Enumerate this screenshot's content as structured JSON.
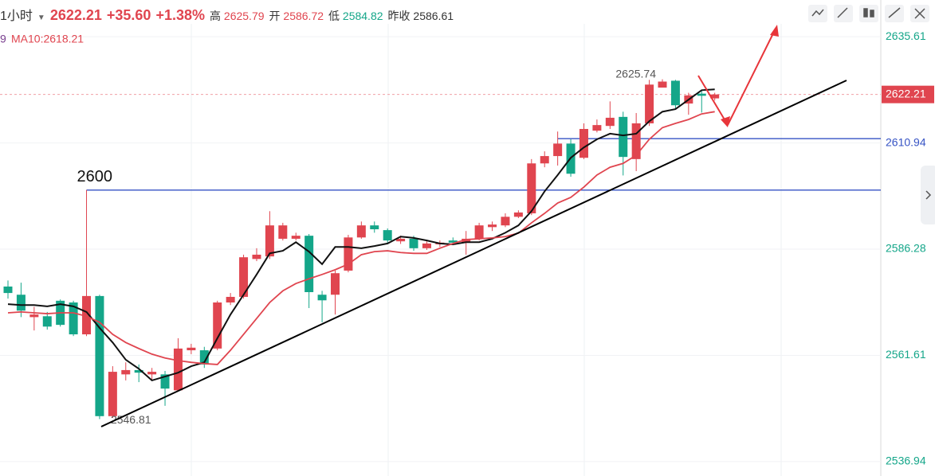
{
  "header": {
    "period": "1小时",
    "price": "2622.21",
    "change": "+35.60",
    "change_pct": "+1.38%",
    "high_label": "高",
    "high": "2625.79",
    "open_label": "开",
    "open": "2586.72",
    "low_label": "低",
    "low": "2584.82",
    "prev_label": "昨收",
    "prev": "2586.61"
  },
  "chart_data": {
    "type": "candlestick",
    "open": [
      2577.6,
      2575.7,
      2570.5,
      2570.7,
      2574.3,
      2573.9,
      2566.5,
      2575.4,
      2547.5,
      2557.2,
      2558.2,
      2557.2,
      2557.2,
      2553.5,
      2562.8,
      2562.8,
      2563.2,
      2573.9,
      2575.2,
      2584.0,
      2584.6,
      2588.7,
      2588.7,
      2589.4,
      2575.7,
      2575.7,
      2581.3,
      2589.0,
      2591.8,
      2590.7,
      2588.1,
      2588.7,
      2586.5,
      2587.4,
      2588.3,
      2587.8,
      2588.7,
      2591.4,
      2591.8,
      2593.8,
      2594.6,
      2606.2,
      2607.9,
      2610.8,
      2607.5,
      2613.8,
      2614.9,
      2617.0,
      2607.2,
      2615.5,
      2623.8,
      2625.4,
      2620.1,
      2622.4,
      2621.3
    ],
    "high": [
      2579.0,
      2578.5,
      2572.9,
      2571.7,
      2574.6,
      2574.3,
      2600.0,
      2575.7,
      2559.1,
      2560.0,
      2559.5,
      2558.7,
      2558.0,
      2565.6,
      2564.3,
      2563.6,
      2574.3,
      2576.1,
      2585.0,
      2586.5,
      2595.1,
      2592.4,
      2590.1,
      2589.8,
      2576.6,
      2581.3,
      2589.6,
      2592.7,
      2592.7,
      2591.1,
      2589.4,
      2589.4,
      2588.1,
      2588.3,
      2589.0,
      2590.5,
      2592.4,
      2592.7,
      2594.6,
      2595.3,
      2607.2,
      2609.0,
      2613.6,
      2611.8,
      2615.5,
      2616.4,
      2620.6,
      2618.2,
      2617.9,
      2625.6,
      2625.74,
      2625.6,
      2622.6,
      2623.0,
      2622.6
    ],
    "low": [
      2574.8,
      2570.5,
      2567.4,
      2567.6,
      2568.3,
      2566.1,
      2566.1,
      2546.81,
      2547.1,
      2555.8,
      2555.4,
      2555.8,
      2549.9,
      2553.2,
      2561.9,
      2558.7,
      2562.8,
      2573.3,
      2574.8,
      2583.5,
      2584.0,
      2588.3,
      2588.3,
      2572.6,
      2569.3,
      2571.1,
      2580.9,
      2588.7,
      2590.1,
      2587.7,
      2587.5,
      2585.9,
      2586.1,
      2586.8,
      2587.2,
      2585.0,
      2588.3,
      2590.5,
      2591.4,
      2593.5,
      2594.2,
      2605.3,
      2605.7,
      2603.1,
      2607.2,
      2613.4,
      2614.2,
      2603.4,
      2604.4,
      2614.9,
      2623.9,
      2618.9,
      2617.5,
      2618.0,
      2620.8
    ],
    "close": [
      2576.1,
      2572.0,
      2571.1,
      2568.3,
      2568.7,
      2566.5,
      2575.4,
      2547.5,
      2557.8,
      2558.2,
      2557.6,
      2557.8,
      2553.9,
      2563.2,
      2563.4,
      2559.5,
      2573.9,
      2575.2,
      2584.4,
      2585.0,
      2591.8,
      2591.8,
      2589.4,
      2576.3,
      2574.4,
      2580.7,
      2589.0,
      2591.8,
      2590.9,
      2588.3,
      2588.7,
      2586.5,
      2587.6,
      2587.8,
      2587.8,
      2588.7,
      2591.8,
      2592.0,
      2593.8,
      2594.8,
      2606.2,
      2607.9,
      2610.8,
      2603.8,
      2614.2,
      2615.1,
      2616.8,
      2607.7,
      2615.5,
      2624.5,
      2625.2,
      2619.7,
      2622.0,
      2621.9,
      2622.21
    ],
    "up_color": "#e0454f",
    "down_color": "#14a689",
    "series": [
      {
        "color": "#111111",
        "values": [
          2573.5,
          2573.3,
          2573.3,
          2573.0,
          2573.5,
          2573.0,
          2571.7,
          2568.0,
          2564.6,
          2560.6,
          2558.5,
          2555.8,
          2556.7,
          2557.6,
          2559.1,
          2560.0,
          2565.6,
          2571.1,
          2575.7,
          2580.4,
          2585.3,
          2585.9,
          2587.9,
          2585.7,
          2582.8,
          2586.8,
          2586.8,
          2586.5,
          2587.0,
          2587.6,
          2589.2,
          2588.9,
          2588.3,
          2587.6,
          2587.4,
          2587.9,
          2587.9,
          2588.7,
          2590.1,
          2591.8,
          2595.1,
          2599.7,
          2603.5,
          2607.5,
          2609.9,
          2611.8,
          2613.1,
          2612.7,
          2613.1,
          2616.0,
          2618.2,
          2618.8,
          2621.0,
          2623.2,
          2623.4
        ]
      },
      {
        "color": "#e0454f",
        "values": [
          2571.5,
          2571.7,
          2571.5,
          2571.3,
          2571.5,
          2571.5,
          2570.7,
          2569.3,
          2566.5,
          2564.6,
          2563.2,
          2561.9,
          2561.0,
          2560.4,
          2560.0,
          2559.7,
          2559.5,
          2562.8,
          2566.5,
          2570.2,
          2573.9,
          2576.6,
          2578.3,
          2579.4,
          2580.4,
          2581.5,
          2582.8,
          2585.0,
          2585.7,
          2585.9,
          2585.5,
          2585.3,
          2585.3,
          2586.5,
          2587.6,
          2588.5,
          2588.7,
          2588.9,
          2589.2,
          2590.0,
          2592.4,
          2594.6,
          2597.0,
          2598.3,
          2600.7,
          2603.5,
          2605.3,
          2606.2,
          2608.1,
          2611.8,
          2614.5,
          2615.5,
          2616.4,
          2617.7,
          2618.21
        ]
      }
    ],
    "ma_labels": [
      "9",
      "MA10:2618.21"
    ],
    "annotations": [
      "2625.74",
      "2546.81"
    ],
    "levels": [
      {
        "value": 2600,
        "label": "2600",
        "color": "#3653c4"
      },
      {
        "value": 2611.95,
        "color": "#3653c4"
      }
    ],
    "last": 2622.21,
    "ylim": [
      2533.6,
      2638.6
    ],
    "yticks": [
      2536.94,
      2561.61,
      2586.28,
      2610.94,
      2635.61
    ],
    "grid": true
  }
}
